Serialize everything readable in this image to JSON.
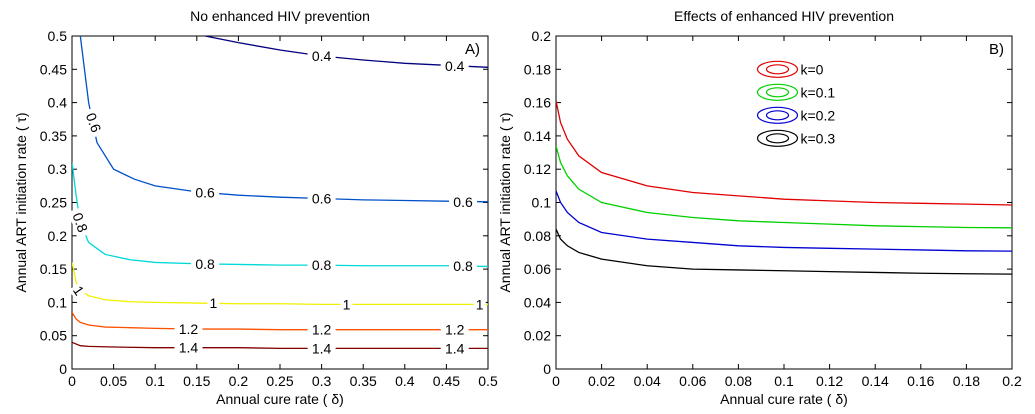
{
  "chart_data": [
    {
      "type": "line",
      "panel": "A)",
      "title": "No enhanced HIV prevention",
      "xlabel": "Annual cure rate ( δ)",
      "ylabel": "Annual ART initiation rate ( τ)",
      "xlim": [
        0,
        0.5
      ],
      "ylim": [
        0,
        0.5
      ],
      "xticks": [
        "0",
        "0.05",
        "0.1",
        "0.15",
        "0.2",
        "0.25",
        "0.3",
        "0.35",
        "0.4",
        "0.45",
        "0.5"
      ],
      "yticks": [
        "0",
        "0.05",
        "0.1",
        "0.15",
        "0.2",
        "0.25",
        "0.3",
        "0.35",
        "0.4",
        "0.45",
        "0.5"
      ],
      "grid": false,
      "series": [
        {
          "name": "0.4",
          "color": "#000080",
          "x": [
            0.16,
            0.2,
            0.25,
            0.3,
            0.35,
            0.4,
            0.45,
            0.5
          ],
          "y": [
            0.5,
            0.49,
            0.479,
            0.47,
            0.464,
            0.459,
            0.456,
            0.453
          ],
          "labels": [
            {
              "text": "0.4",
              "x": 0.3,
              "y": 0.47
            },
            {
              "text": "0.4",
              "x": 0.46,
              "y": 0.455
            }
          ]
        },
        {
          "name": "0.6",
          "color": "#0050c8",
          "x": [
            0.01,
            0.015,
            0.02,
            0.03,
            0.05,
            0.075,
            0.1,
            0.15,
            0.2,
            0.25,
            0.3,
            0.35,
            0.4,
            0.45,
            0.5
          ],
          "y": [
            0.5,
            0.45,
            0.4,
            0.34,
            0.3,
            0.285,
            0.275,
            0.266,
            0.261,
            0.258,
            0.256,
            0.254,
            0.253,
            0.252,
            0.251
          ],
          "labels": [
            {
              "text": "0.6",
              "x": 0.026,
              "y": 0.37,
              "rotate": 70
            },
            {
              "text": "0.6",
              "x": 0.16,
              "y": 0.265
            },
            {
              "text": "0.6",
              "x": 0.3,
              "y": 0.256
            },
            {
              "text": "0.6",
              "x": 0.47,
              "y": 0.251
            }
          ]
        },
        {
          "name": "0.8",
          "color": "#00d8d8",
          "x": [
            0.0,
            0.005,
            0.01,
            0.02,
            0.04,
            0.07,
            0.1,
            0.15,
            0.2,
            0.25,
            0.3,
            0.35,
            0.4,
            0.45,
            0.5
          ],
          "y": [
            0.31,
            0.26,
            0.22,
            0.19,
            0.172,
            0.164,
            0.16,
            0.158,
            0.157,
            0.156,
            0.156,
            0.155,
            0.155,
            0.155,
            0.154
          ],
          "labels": [
            {
              "text": "0.8",
              "x": 0.01,
              "y": 0.22,
              "rotate": 70
            },
            {
              "text": "0.8",
              "x": 0.16,
              "y": 0.158
            },
            {
              "text": "0.8",
              "x": 0.3,
              "y": 0.156
            },
            {
              "text": "0.8",
              "x": 0.47,
              "y": 0.155
            }
          ]
        },
        {
          "name": "1",
          "color": "#f0f000",
          "x": [
            0.0,
            0.005,
            0.01,
            0.02,
            0.04,
            0.07,
            0.1,
            0.15,
            0.2,
            0.25,
            0.3,
            0.35,
            0.4,
            0.45,
            0.5
          ],
          "y": [
            0.16,
            0.13,
            0.118,
            0.11,
            0.104,
            0.101,
            0.1,
            0.099,
            0.098,
            0.098,
            0.097,
            0.097,
            0.097,
            0.097,
            0.097
          ],
          "labels": [
            {
              "text": "1",
              "x": 0.008,
              "y": 0.118,
              "rotate": 55
            },
            {
              "text": "1",
              "x": 0.17,
              "y": 0.099
            },
            {
              "text": "1",
              "x": 0.33,
              "y": 0.097
            },
            {
              "text": "1",
              "x": 0.49,
              "y": 0.097
            }
          ]
        },
        {
          "name": "1.2",
          "color": "#ff5000",
          "x": [
            0.0,
            0.005,
            0.01,
            0.02,
            0.04,
            0.07,
            0.1,
            0.15,
            0.2,
            0.25,
            0.3,
            0.35,
            0.4,
            0.45,
            0.5
          ],
          "y": [
            0.085,
            0.075,
            0.07,
            0.066,
            0.063,
            0.062,
            0.061,
            0.06,
            0.06,
            0.059,
            0.059,
            0.059,
            0.059,
            0.059,
            0.059
          ],
          "labels": [
            {
              "text": "1.2",
              "x": 0.14,
              "y": 0.06
            },
            {
              "text": "1.2",
              "x": 0.3,
              "y": 0.059
            },
            {
              "text": "1.2",
              "x": 0.46,
              "y": 0.059
            }
          ]
        },
        {
          "name": "1.4",
          "color": "#800000",
          "x": [
            0.0,
            0.01,
            0.02,
            0.05,
            0.1,
            0.15,
            0.2,
            0.25,
            0.3,
            0.35,
            0.4,
            0.45,
            0.5
          ],
          "y": [
            0.04,
            0.035,
            0.034,
            0.033,
            0.032,
            0.032,
            0.032,
            0.031,
            0.031,
            0.031,
            0.031,
            0.031,
            0.031
          ],
          "labels": [
            {
              "text": "1.4",
              "x": 0.14,
              "y": 0.032
            },
            {
              "text": "1.4",
              "x": 0.3,
              "y": 0.031
            },
            {
              "text": "1.4",
              "x": 0.46,
              "y": 0.031
            }
          ]
        }
      ]
    },
    {
      "type": "line",
      "panel": "B)",
      "title": "Effects of enhanced HIV prevention",
      "xlabel": "Annual cure rate ( δ)",
      "ylabel": "Annual ART initiation rate ( τ)",
      "xlim": [
        0,
        0.2
      ],
      "ylim": [
        0,
        0.2
      ],
      "xticks": [
        "0",
        "0.02",
        "0.04",
        "0.06",
        "0.08",
        "0.1",
        "0.12",
        "0.14",
        "0.16",
        "0.18",
        "0.2"
      ],
      "yticks": [
        "0",
        "0.02",
        "0.04",
        "0.06",
        "0.08",
        "0.1",
        "0.12",
        "0.14",
        "0.16",
        "0.18",
        "0.2"
      ],
      "grid": false,
      "legend_position": "top-center",
      "series": [
        {
          "name": "k=0",
          "color": "#e00000",
          "x": [
            0.0,
            0.002,
            0.005,
            0.01,
            0.02,
            0.04,
            0.06,
            0.08,
            0.1,
            0.12,
            0.14,
            0.16,
            0.18,
            0.2
          ],
          "y": [
            0.161,
            0.148,
            0.138,
            0.128,
            0.118,
            0.11,
            0.106,
            0.104,
            0.102,
            0.101,
            0.1,
            0.0995,
            0.099,
            0.0985
          ]
        },
        {
          "name": "k=0.1",
          "color": "#00d000",
          "x": [
            0.0,
            0.002,
            0.005,
            0.01,
            0.02,
            0.04,
            0.06,
            0.08,
            0.1,
            0.12,
            0.14,
            0.16,
            0.18,
            0.2
          ],
          "y": [
            0.134,
            0.124,
            0.116,
            0.108,
            0.1,
            0.094,
            0.091,
            0.089,
            0.088,
            0.087,
            0.086,
            0.0855,
            0.085,
            0.0848
          ]
        },
        {
          "name": "k=0.2",
          "color": "#0000d0",
          "x": [
            0.0,
            0.002,
            0.005,
            0.01,
            0.02,
            0.04,
            0.06,
            0.08,
            0.1,
            0.12,
            0.14,
            0.16,
            0.18,
            0.2
          ],
          "y": [
            0.107,
            0.1,
            0.094,
            0.088,
            0.082,
            0.078,
            0.076,
            0.074,
            0.073,
            0.0725,
            0.072,
            0.0715,
            0.071,
            0.0708
          ]
        },
        {
          "name": "k=0.3",
          "color": "#000000",
          "x": [
            0.0,
            0.002,
            0.005,
            0.01,
            0.02,
            0.04,
            0.06,
            0.08,
            0.1,
            0.12,
            0.14,
            0.16,
            0.18,
            0.2
          ],
          "y": [
            0.084,
            0.078,
            0.074,
            0.07,
            0.066,
            0.062,
            0.06,
            0.0595,
            0.059,
            0.0585,
            0.058,
            0.0575,
            0.0572,
            0.057
          ]
        }
      ]
    }
  ]
}
